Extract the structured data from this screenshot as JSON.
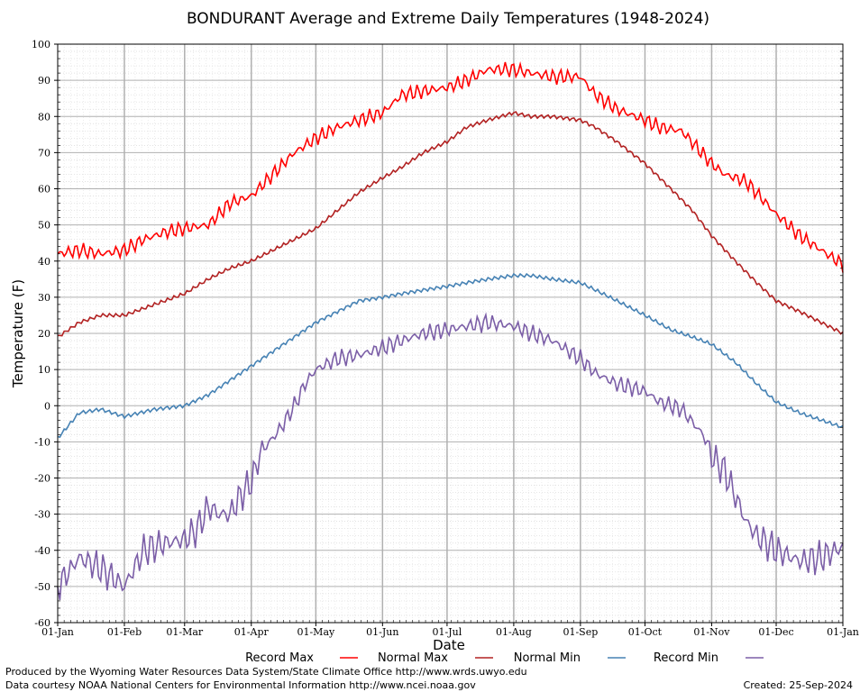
{
  "chart_data": {
    "type": "line",
    "title": "BONDURANT Average and Extreme Daily Temperatures (1948-2024)",
    "xlabel": "Date",
    "ylabel": "Temperature (F)",
    "ylim": [
      -60,
      100
    ],
    "yticks": [
      "100",
      "90",
      "80",
      "70",
      "60",
      "50",
      "40",
      "30",
      "20",
      "10",
      "0",
      "-10",
      "-20",
      "-30",
      "-40",
      "-50",
      "-60"
    ],
    "xticks": [
      "01-Jan",
      "01-Feb",
      "01-Mar",
      "01-Apr",
      "01-May",
      "01-Jun",
      "01-Jul",
      "01-Aug",
      "01-Sep",
      "01-Oct",
      "01-Nov",
      "01-Dec",
      "01-Jan"
    ],
    "grid": true,
    "legend_position": "bottom",
    "series": [
      {
        "name": "Record Max",
        "color": "#ff0000",
        "x": [
          0,
          10,
          20,
          31,
          40,
          50,
          59,
          70,
          80,
          90,
          100,
          110,
          120,
          130,
          140,
          151,
          160,
          170,
          181,
          190,
          200,
          212,
          220,
          230,
          243,
          250,
          260,
          273,
          280,
          290,
          304,
          310,
          320,
          334,
          345,
          355,
          365
        ],
        "y": [
          42,
          43,
          42,
          43,
          46,
          48,
          49,
          50,
          56,
          58,
          64,
          70,
          74,
          77,
          79,
          81,
          86,
          87,
          88,
          90,
          93,
          93,
          92,
          91,
          91,
          86,
          82,
          79,
          77,
          76,
          67,
          64,
          62,
          53,
          47,
          43,
          39
        ]
      },
      {
        "name": "Normal Max",
        "color": "#b22222",
        "x": [
          0,
          10,
          20,
          31,
          45,
          59,
          70,
          80,
          90,
          100,
          110,
          120,
          130,
          140,
          151,
          160,
          170,
          181,
          190,
          200,
          212,
          220,
          230,
          243,
          250,
          260,
          273,
          285,
          295,
          304,
          315,
          325,
          334,
          345,
          355,
          365
        ],
        "y": [
          19,
          23,
          25,
          25,
          28,
          31,
          35,
          38,
          40,
          43,
          46,
          49,
          54,
          59,
          63,
          66,
          70,
          73,
          77,
          79,
          81,
          80,
          80,
          79,
          77,
          73,
          67,
          60,
          54,
          47,
          40,
          34,
          29,
          26,
          23,
          20
        ]
      },
      {
        "name": "Normal Min",
        "color": "#4682b4",
        "x": [
          0,
          10,
          20,
          31,
          45,
          59,
          70,
          80,
          90,
          100,
          110,
          120,
          130,
          140,
          151,
          160,
          170,
          181,
          190,
          200,
          212,
          220,
          230,
          243,
          250,
          260,
          273,
          285,
          295,
          304,
          315,
          325,
          334,
          345,
          355,
          365
        ],
        "y": [
          -9,
          -2,
          -1,
          -3,
          -1,
          0,
          3,
          7,
          11,
          15,
          19,
          23,
          26,
          29,
          30,
          31,
          32,
          33,
          34,
          35,
          36,
          36,
          35,
          34,
          32,
          29,
          25,
          21,
          19,
          17,
          12,
          6,
          1,
          -2,
          -4,
          -6
        ]
      },
      {
        "name": "Record Min",
        "color": "#7b5ea7",
        "x": [
          0,
          10,
          20,
          31,
          40,
          50,
          59,
          65,
          70,
          75,
          80,
          85,
          90,
          95,
          100,
          105,
          110,
          115,
          120,
          130,
          140,
          151,
          160,
          170,
          181,
          190,
          200,
          212,
          220,
          230,
          243,
          250,
          260,
          273,
          280,
          290,
          300,
          304,
          310,
          315,
          320,
          325,
          334,
          345,
          355,
          365
        ],
        "y": [
          -50,
          -42,
          -45,
          -50,
          -40,
          -38,
          -37,
          -34,
          -28,
          -30,
          -30,
          -25,
          -21,
          -12,
          -9,
          -5,
          0,
          6,
          10,
          13,
          14,
          16,
          18,
          20,
          21,
          22,
          23,
          22,
          20,
          18,
          13,
          9,
          6,
          4,
          1,
          -1,
          -8,
          -14,
          -18,
          -25,
          -32,
          -36,
          -40,
          -43,
          -42,
          -39
        ]
      }
    ]
  },
  "credits": {
    "produced_by": "Produced by the Wyoming Water Resources Data System/State Climate Office http://www.wrds.uwyo.edu",
    "data_courtesy": "Data courtesy NOAA National Centers for Environmental Information http://www.ncei.noaa.gov",
    "created": "Created:  25-Sep-2024"
  }
}
